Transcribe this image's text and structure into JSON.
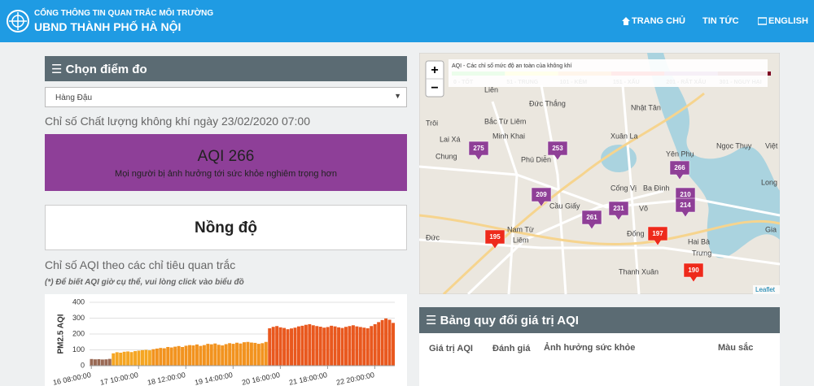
{
  "header": {
    "title_top": "CỔNG THÔNG TIN QUAN TRẮC MÔI TRƯỜNG",
    "title_main": "UBND THÀNH PHỐ HÀ NỘI",
    "nav": [
      "TRANG CHỦ",
      "TIN TỨC",
      "ENGLISH"
    ]
  },
  "station_panel": {
    "heading": "Chọn điểm đo",
    "selected_station": "Hàng Đậu",
    "aqi_caption": "Chỉ số Chất lượng không khí ngày 23/02/2020 07:00",
    "aqi_label": "AQI 266",
    "aqi_message": "Mọi người bị ảnh hưởng tới sức khỏe nghiêm trọng hơn",
    "concentration_heading": "Nồng độ",
    "indicator_caption": "Chỉ số AQI theo các chỉ tiêu quan trắc",
    "hint": "(*) Để biết AQI giờ cụ thể, vui lòng click vào biểu đồ"
  },
  "chart_data": {
    "type": "bar",
    "y_label": "PM2.5 AQI",
    "categories": [
      "16 08:00:00",
      null,
      null,
      null,
      null,
      null,
      null,
      null,
      null,
      null,
      null,
      null,
      null,
      "17 10:00:00",
      null,
      null,
      null,
      null,
      null,
      null,
      null,
      null,
      null,
      null,
      null,
      null,
      "18 12:00:00",
      null,
      null,
      null,
      null,
      null,
      null,
      null,
      null,
      null,
      null,
      null,
      null,
      "19 14:00:00",
      null,
      null,
      null,
      null,
      null,
      null,
      null,
      null,
      null,
      null,
      null,
      null,
      "20 16:00:00",
      null,
      null,
      null,
      null,
      null,
      null,
      null,
      null,
      null,
      null,
      null,
      null,
      "21 18:00:00",
      null,
      null,
      null,
      null,
      null,
      null,
      null,
      null,
      null,
      null,
      null,
      null,
      "22 20:00:00",
      null,
      null,
      null,
      null,
      null
    ],
    "values": [
      42,
      40,
      41,
      39,
      40,
      43,
      78,
      85,
      82,
      88,
      90,
      86,
      92,
      95,
      98,
      100,
      97,
      104,
      108,
      112,
      110,
      118,
      115,
      120,
      124,
      118,
      126,
      130,
      128,
      134,
      125,
      130,
      138,
      135,
      140,
      132,
      128,
      136,
      142,
      138,
      145,
      140,
      148,
      150,
      146,
      144,
      138,
      142,
      150,
      236,
      245,
      250,
      242,
      238,
      230,
      235,
      240,
      248,
      252,
      258,
      262,
      255,
      250,
      246,
      240,
      244,
      252,
      248,
      242,
      238,
      245,
      250,
      255,
      248,
      244,
      240,
      236,
      250,
      262,
      275,
      288,
      298,
      290,
      270
    ],
    "colors": [
      "#9a6a55",
      "#9a6a55",
      "#9a6a55",
      "#9a6a55",
      "#9a6a55",
      "#9a6a55",
      "#f5a623",
      "#f5a623",
      "#f5a623",
      "#f5a623",
      "#f5a623",
      "#f5a623",
      "#f5a623",
      "#f5a623",
      "#f5a623",
      "#f5a623",
      "#f5a623",
      "#f2931f",
      "#f2931f",
      "#f2931f",
      "#f2931f",
      "#f2931f",
      "#f2931f",
      "#f2931f",
      "#f2931f",
      "#f2931f",
      "#f2931f",
      "#f2931f",
      "#f2931f",
      "#f2931f",
      "#f2931f",
      "#f2931f",
      "#f2931f",
      "#f2931f",
      "#f2931f",
      "#f2931f",
      "#f2931f",
      "#f2931f",
      "#f2931f",
      "#f2931f",
      "#f2931f",
      "#f2931f",
      "#f2931f",
      "#f2931f",
      "#f2931f",
      "#f2931f",
      "#f2931f",
      "#f2931f",
      "#f2931f",
      "#e9581e",
      "#e9581e",
      "#e9581e",
      "#e9581e",
      "#e9581e",
      "#e9581e",
      "#e9581e",
      "#e9581e",
      "#e9581e",
      "#e9581e",
      "#e9581e",
      "#e9581e",
      "#e9581e",
      "#e9581e",
      "#e9581e",
      "#e9581e",
      "#e9581e",
      "#e9581e",
      "#e9581e",
      "#e9581e",
      "#e9581e",
      "#e9581e",
      "#e9581e",
      "#e9581e",
      "#e9581e",
      "#e9581e",
      "#e9581e",
      "#e9581e",
      "#e9581e",
      "#e9581e",
      "#e9581e",
      "#e9581e",
      "#e9581e",
      "#e9581e",
      "#e9581e"
    ],
    "ylim": [
      0,
      400
    ],
    "yticks": [
      0,
      100,
      200,
      300,
      400
    ],
    "grid": true
  },
  "map": {
    "legend_title": "AQI - Các chỉ số mức độ an toàn của không khí",
    "legend": [
      {
        "label": "0 - TỐT",
        "color": "#00e400"
      },
      {
        "label": "51 - TRUNG",
        "color": "#ffff00"
      },
      {
        "label": "101 - KÉM",
        "color": "#ff7e00"
      },
      {
        "label": "151 - XẤU",
        "color": "#ff0000"
      },
      {
        "label": "201 - RẤT XẤU",
        "color": "#8f3f97"
      },
      {
        "label": "301 - NGUY HẠI",
        "color": "#7e0023"
      }
    ],
    "places": [
      "Đức Thắng",
      "Nhật Tân",
      "Bắc Từ Liêm",
      "Trôi",
      "Minh Khai",
      "Xuân La",
      "Lai Xá",
      "Yên Phụ",
      "Ngọc Thụy",
      "Việt",
      "Chung",
      "Phú Diễn",
      "Cống Vị",
      "Ba Đình",
      "Long Biên",
      "Cầu Giấy",
      "Võ",
      "Nam Từ",
      "Liêm",
      "Đức",
      "Đống",
      "Hai Bà",
      "Trưng",
      "Thanh Xuân",
      "Gia",
      "Liên"
    ],
    "markers": [
      {
        "value": 275,
        "color": "#8f3f97"
      },
      {
        "value": 253,
        "color": "#8f3f97"
      },
      {
        "value": 266,
        "color": "#8f3f97"
      },
      {
        "value": 209,
        "color": "#8f3f97"
      },
      {
        "value": 210,
        "color": "#8f3f97"
      },
      {
        "value": 214,
        "color": "#8f3f97"
      },
      {
        "value": 261,
        "color": "#8f3f97"
      },
      {
        "value": 231,
        "color": "#8f3f97"
      },
      {
        "value": 195,
        "color": "#ee2a1b"
      },
      {
        "value": 197,
        "color": "#ee2a1b"
      },
      {
        "value": 190,
        "color": "#ee2a1b"
      }
    ],
    "zoom_in": "+",
    "zoom_out": "−",
    "attribution": "Leaflet"
  },
  "conversion_table": {
    "heading": "Bảng quy đổi giá trị AQI",
    "columns": [
      "Giá trị AQI",
      "Đánh giá",
      "Ảnh hưởng sức khỏe",
      "Màu sắc"
    ]
  }
}
